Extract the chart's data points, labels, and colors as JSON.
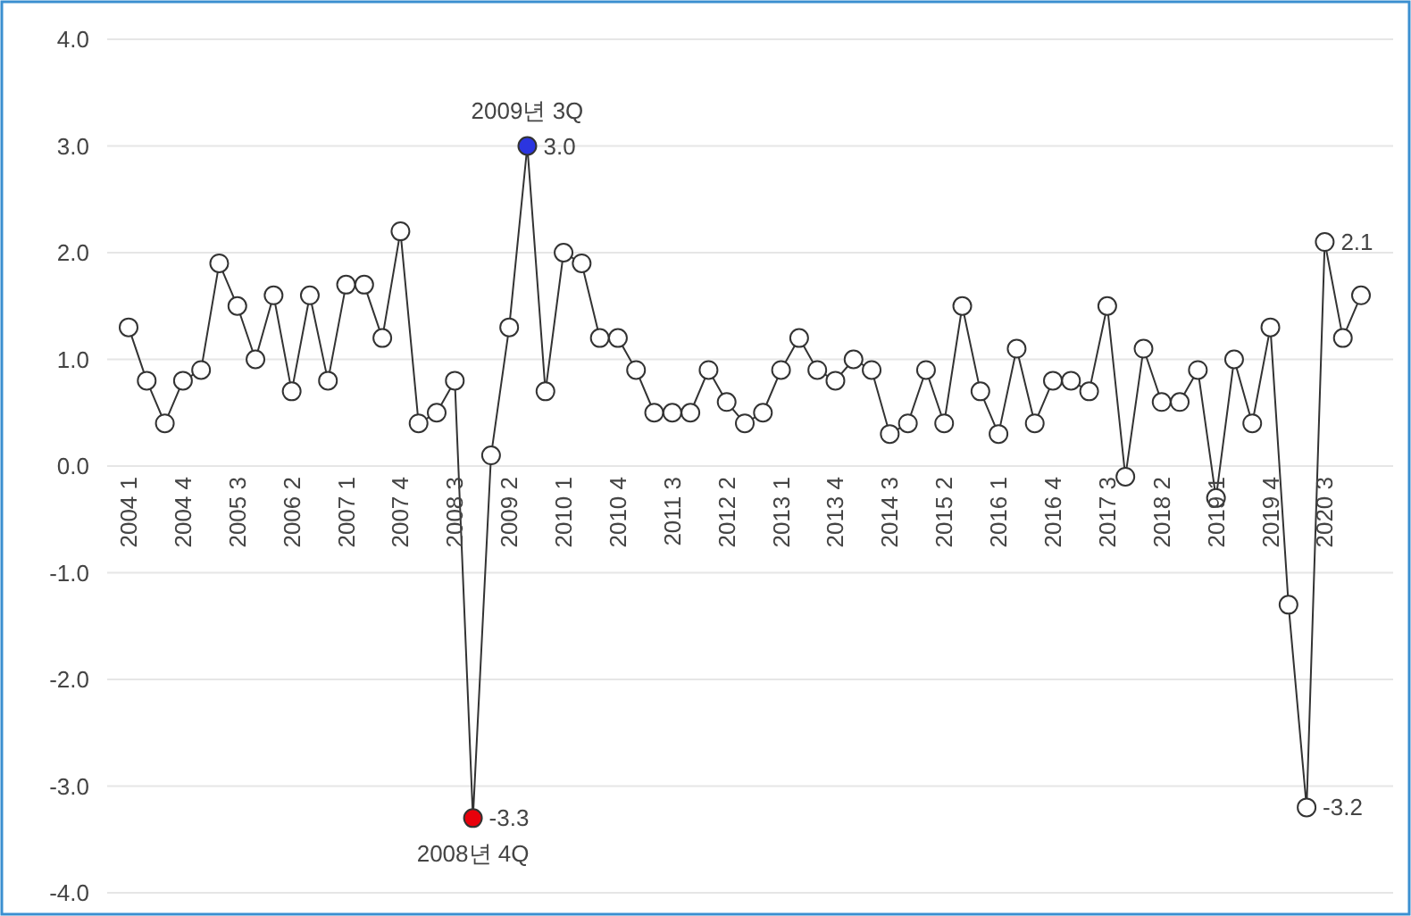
{
  "chart_data": {
    "type": "line",
    "categories": [
      "2004 1",
      null,
      null,
      "2004 4",
      null,
      null,
      "2005 3",
      null,
      null,
      "2006 2",
      null,
      null,
      "2007 1",
      null,
      null,
      "2007 4",
      null,
      null,
      "2008 3",
      null,
      null,
      "2009 2",
      null,
      null,
      "2010 1",
      null,
      null,
      "2010 4",
      null,
      null,
      "2011 3",
      null,
      null,
      "2012 2",
      null,
      null,
      "2013 1",
      null,
      null,
      "2013 4",
      null,
      null,
      "2014 3",
      null,
      null,
      "2015 2",
      null,
      null,
      "2016 1",
      null,
      null,
      "2016 4",
      null,
      null,
      "2017 3",
      null,
      null,
      "2018 2",
      null,
      null,
      "2019 1",
      null,
      null,
      "2019 4",
      null,
      null,
      "2020 3",
      null,
      null
    ],
    "series": [
      {
        "color": "#333333",
        "values": [
          1.3,
          0.8,
          0.4,
          0.8,
          0.9,
          1.9,
          1.5,
          1.0,
          1.6,
          0.7,
          1.6,
          0.8,
          1.7,
          1.7,
          1.2,
          2.2,
          0.4,
          0.5,
          0.8,
          -3.3,
          0.1,
          1.3,
          3.0,
          0.7,
          2.0,
          1.9,
          1.2,
          1.2,
          0.9,
          0.5,
          0.5,
          0.5,
          0.9,
          0.6,
          0.4,
          0.5,
          0.9,
          1.2,
          0.9,
          0.8,
          1.0,
          0.9,
          0.3,
          0.4,
          0.9,
          0.4,
          1.5,
          0.7,
          0.3,
          1.1,
          0.4,
          0.8,
          0.8,
          0.7,
          1.5,
          -0.1,
          1.1,
          0.6,
          0.6,
          0.9,
          -0.3,
          1.0,
          0.4,
          1.3,
          -1.3,
          -3.2,
          2.1,
          1.2,
          1.6
        ],
        "colors": [
          "#ffffff",
          "#ffffff",
          "#ffffff",
          "#ffffff",
          "#ffffff",
          "#ffffff",
          "#ffffff",
          "#ffffff",
          "#ffffff",
          "#ffffff",
          "#ffffff",
          "#ffffff",
          "#ffffff",
          "#ffffff",
          "#ffffff",
          "#ffffff",
          "#ffffff",
          "#ffffff",
          "#ffffff",
          "#e8000b",
          "#ffffff",
          "#ffffff",
          "#2b35e0",
          "#ffffff",
          "#ffffff",
          "#ffffff",
          "#ffffff",
          "#ffffff",
          "#ffffff",
          "#ffffff",
          "#ffffff",
          "#ffffff",
          "#ffffff",
          "#ffffff",
          "#ffffff",
          "#ffffff",
          "#ffffff",
          "#ffffff",
          "#ffffff",
          "#ffffff",
          "#ffffff",
          "#ffffff",
          "#ffffff",
          "#ffffff",
          "#ffffff",
          "#ffffff",
          "#ffffff",
          "#ffffff",
          "#ffffff",
          "#ffffff",
          "#ffffff",
          "#ffffff",
          "#ffffff",
          "#ffffff",
          "#ffffff",
          "#ffffff",
          "#ffffff",
          "#ffffff",
          "#ffffff",
          "#ffffff",
          "#ffffff",
          "#ffffff",
          "#ffffff",
          "#ffffff",
          "#ffffff",
          "#ffffff",
          "#ffffff",
          "#ffffff",
          "#ffffff"
        ],
        "value_labels": [
          null,
          null,
          null,
          null,
          null,
          null,
          null,
          null,
          null,
          null,
          null,
          null,
          null,
          null,
          null,
          null,
          null,
          null,
          null,
          "-3.3",
          null,
          null,
          "3.0",
          null,
          null,
          null,
          null,
          null,
          null,
          null,
          null,
          null,
          null,
          null,
          null,
          null,
          null,
          null,
          null,
          null,
          null,
          null,
          null,
          null,
          null,
          null,
          null,
          null,
          null,
          null,
          null,
          null,
          null,
          null,
          null,
          null,
          null,
          null,
          null,
          null,
          null,
          null,
          null,
          null,
          null,
          "-3.2",
          "2.1",
          null,
          null
        ]
      }
    ],
    "annotations": [
      {
        "text": "2009년 3Q",
        "y": 3.0
      },
      {
        "text": "2008년 4Q",
        "y": -3.3
      }
    ],
    "ylim": [
      -4,
      4
    ],
    "yticks": [
      {
        "value": 4,
        "label": "4.0"
      },
      {
        "value": 3,
        "label": "3.0"
      },
      {
        "value": 2,
        "label": "2.0"
      },
      {
        "value": 1,
        "label": "1.0"
      },
      {
        "value": 0,
        "label": "0.0"
      },
      {
        "value": -1,
        "label": "-1.0"
      },
      {
        "value": -2,
        "label": "-2.0"
      },
      {
        "value": -3,
        "label": "-3.0"
      },
      {
        "value": -4,
        "label": "-4.0"
      }
    ],
    "grid": "y",
    "marker": "circle",
    "line_style": "solid"
  }
}
